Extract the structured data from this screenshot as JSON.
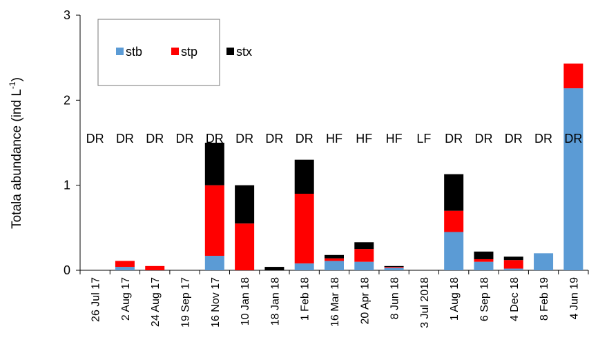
{
  "chart_data": {
    "type": "stacked_bar",
    "ylabel": "Totala abundance (ind L",
    "ylabel_sup": "-1",
    "ylabel_end": ")",
    "categories": [
      "26 Jul 17",
      "2 Aug 17",
      "24 Aug 17",
      "19 Sep 17",
      "16 Nov 17",
      "10 Jan 18",
      "18 Jan 18",
      "1 Feb 18",
      "16 Mar 18",
      "20 Apr 18",
      "8 Jun 18",
      "3 Jul 2018",
      "1 Aug 18",
      "6 Sep 18",
      "4 Dec 18",
      "8 Feb 19",
      "4 Jun 19"
    ],
    "annotations": [
      "DR",
      "DR",
      "DR",
      "DR",
      "DR",
      "DR",
      "DR",
      "DR",
      "HF",
      "HF",
      "HF",
      "LF",
      "DR",
      "DR",
      "DR",
      "DR",
      "DR"
    ],
    "series": [
      {
        "name": "stb",
        "color": "#5b9bd5",
        "values": [
          0,
          0.04,
          0,
          0,
          0.17,
          0,
          0,
          0.08,
          0.11,
          0.1,
          0.03,
          0,
          0.45,
          0.1,
          0.02,
          0.2,
          2.14
        ]
      },
      {
        "name": "stp",
        "color": "#ff0000",
        "values": [
          0,
          0.07,
          0.05,
          0,
          0.83,
          0.55,
          0,
          0.82,
          0.03,
          0.15,
          0.01,
          0,
          0.25,
          0.03,
          0.1,
          0,
          0.29
        ]
      },
      {
        "name": "stx",
        "color": "#000000",
        "values": [
          0,
          0,
          0,
          0,
          0.5,
          0.45,
          0.04,
          0.4,
          0.04,
          0.08,
          0.01,
          0,
          0.43,
          0.09,
          0.04,
          0,
          0
        ]
      }
    ],
    "ylim": [
      0,
      3
    ],
    "yticks": [
      0,
      1,
      2,
      3
    ],
    "legend": "top-left"
  }
}
